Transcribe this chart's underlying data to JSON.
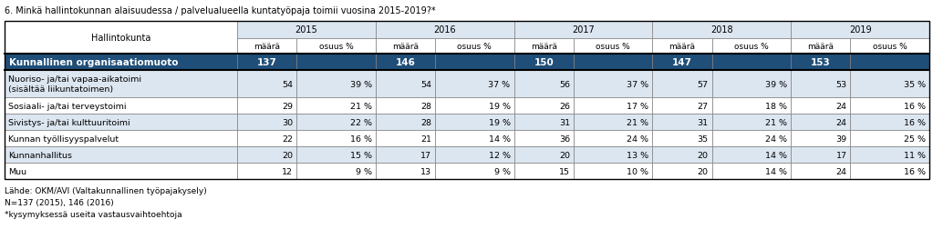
{
  "title": "6. Minkä hallintokunnan alaisuudessa / palvelualueella kuntatyöpaja toimii vuosina 2015-2019?*",
  "year_labels": [
    "2015",
    "2016",
    "2017",
    "2018",
    "2019"
  ],
  "bold_row": {
    "label": "Kunnallinen organisaatiomuoto",
    "values": [
      "137",
      "",
      "146",
      "",
      "150",
      "",
      "147",
      "",
      "153",
      ""
    ]
  },
  "rows": [
    {
      "label": "Nuoriso- ja/tai vapaa-aikatoimi\n(sisältää liikuntatoimen)",
      "values": [
        "54",
        "39 %",
        "54",
        "37 %",
        "56",
        "37 %",
        "57",
        "39 %",
        "53",
        "35 %"
      ],
      "tall": true
    },
    {
      "label": "Sosiaali- ja/tai terveystoimi",
      "values": [
        "29",
        "21 %",
        "28",
        "19 %",
        "26",
        "17 %",
        "27",
        "18 %",
        "24",
        "16 %"
      ],
      "tall": false
    },
    {
      "label": "Sivistys- ja/tai kulttuuritoimi",
      "values": [
        "30",
        "22 %",
        "28",
        "19 %",
        "31",
        "21 %",
        "31",
        "21 %",
        "24",
        "16 %"
      ],
      "tall": false
    },
    {
      "label": "Kunnan työllisyyspalvelut",
      "values": [
        "22",
        "16 %",
        "21",
        "14 %",
        "36",
        "24 %",
        "35",
        "24 %",
        "39",
        "25 %"
      ],
      "tall": false
    },
    {
      "label": "Kunnanhallitus",
      "values": [
        "20",
        "15 %",
        "17",
        "12 %",
        "20",
        "13 %",
        "20",
        "14 %",
        "17",
        "11 %"
      ],
      "tall": false
    },
    {
      "label": "Muu",
      "values": [
        "12",
        "9 %",
        "13",
        "9 %",
        "15",
        "10 %",
        "20",
        "14 %",
        "24",
        "16 %"
      ],
      "tall": false
    }
  ],
  "footnotes": [
    "Lähde: OKM/AVI (Valtakunnallinen työpajakysely)",
    "N=137 (2015), 146 (2016)",
    "*kysymyksessä useita vastausvaihtoehtoja"
  ],
  "colors": {
    "white": "#ffffff",
    "bold_row_bg": "#1f4e79",
    "bold_row_text": "#ffffff",
    "light_blue": "#dce6f1",
    "border": "#7f7f7f",
    "outer_border": "#000000",
    "year_header_bg": "#dce6f1",
    "header_bg": "#ffffff"
  },
  "figsize": [
    10.23,
    2.53
  ],
  "dpi": 100
}
